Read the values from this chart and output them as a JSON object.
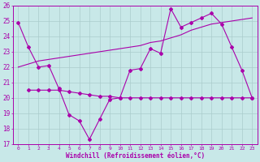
{
  "xlabel": "Windchill (Refroidissement éolien,°C)",
  "background_color": "#c8e8e8",
  "line_color": "#aa00aa",
  "grid_color": "#aacccc",
  "xlim_min": -0.5,
  "xlim_max": 23.5,
  "ylim_min": 17,
  "ylim_max": 26,
  "yticks": [
    17,
    18,
    19,
    20,
    21,
    22,
    23,
    24,
    25,
    26
  ],
  "xticks": [
    0,
    1,
    2,
    3,
    4,
    5,
    6,
    7,
    8,
    9,
    10,
    11,
    12,
    13,
    14,
    15,
    16,
    17,
    18,
    19,
    20,
    21,
    22,
    23
  ],
  "series1_x": [
    0,
    1,
    2,
    3,
    4,
    5,
    6,
    7,
    8,
    9,
    10,
    11,
    12,
    13,
    14,
    15,
    16,
    17,
    18,
    19,
    20,
    21,
    22,
    23
  ],
  "series1_y": [
    24.9,
    23.3,
    22.0,
    22.1,
    20.6,
    18.9,
    18.5,
    17.3,
    18.6,
    19.9,
    20.0,
    21.8,
    21.9,
    23.2,
    22.9,
    25.8,
    24.6,
    24.9,
    25.2,
    25.5,
    24.8,
    23.3,
    21.8,
    20.0
  ],
  "series2_x": [
    0,
    1,
    2,
    3,
    4,
    5,
    6,
    7,
    8,
    9,
    10,
    11,
    12,
    13,
    14,
    15,
    16,
    17,
    18,
    19,
    20,
    21,
    22,
    23
  ],
  "series2_y": [
    22.0,
    22.2,
    22.4,
    22.5,
    22.6,
    22.7,
    22.8,
    22.9,
    23.0,
    23.1,
    23.2,
    23.3,
    23.4,
    23.6,
    23.7,
    23.9,
    24.1,
    24.4,
    24.6,
    24.8,
    24.9,
    25.0,
    25.1,
    25.2
  ],
  "series3_x": [
    1,
    2,
    3,
    4,
    5,
    6,
    7,
    8,
    9,
    10,
    11,
    12,
    13,
    14,
    15,
    16,
    17,
    18,
    19,
    20,
    21,
    22,
    23
  ],
  "series3_y": [
    20.5,
    20.5,
    20.5,
    20.5,
    20.4,
    20.3,
    20.2,
    20.1,
    20.1,
    20.0,
    20.0,
    20.0,
    20.0,
    20.0,
    20.0,
    20.0,
    20.0,
    20.0,
    20.0,
    20.0,
    20.0,
    20.0,
    20.0
  ]
}
